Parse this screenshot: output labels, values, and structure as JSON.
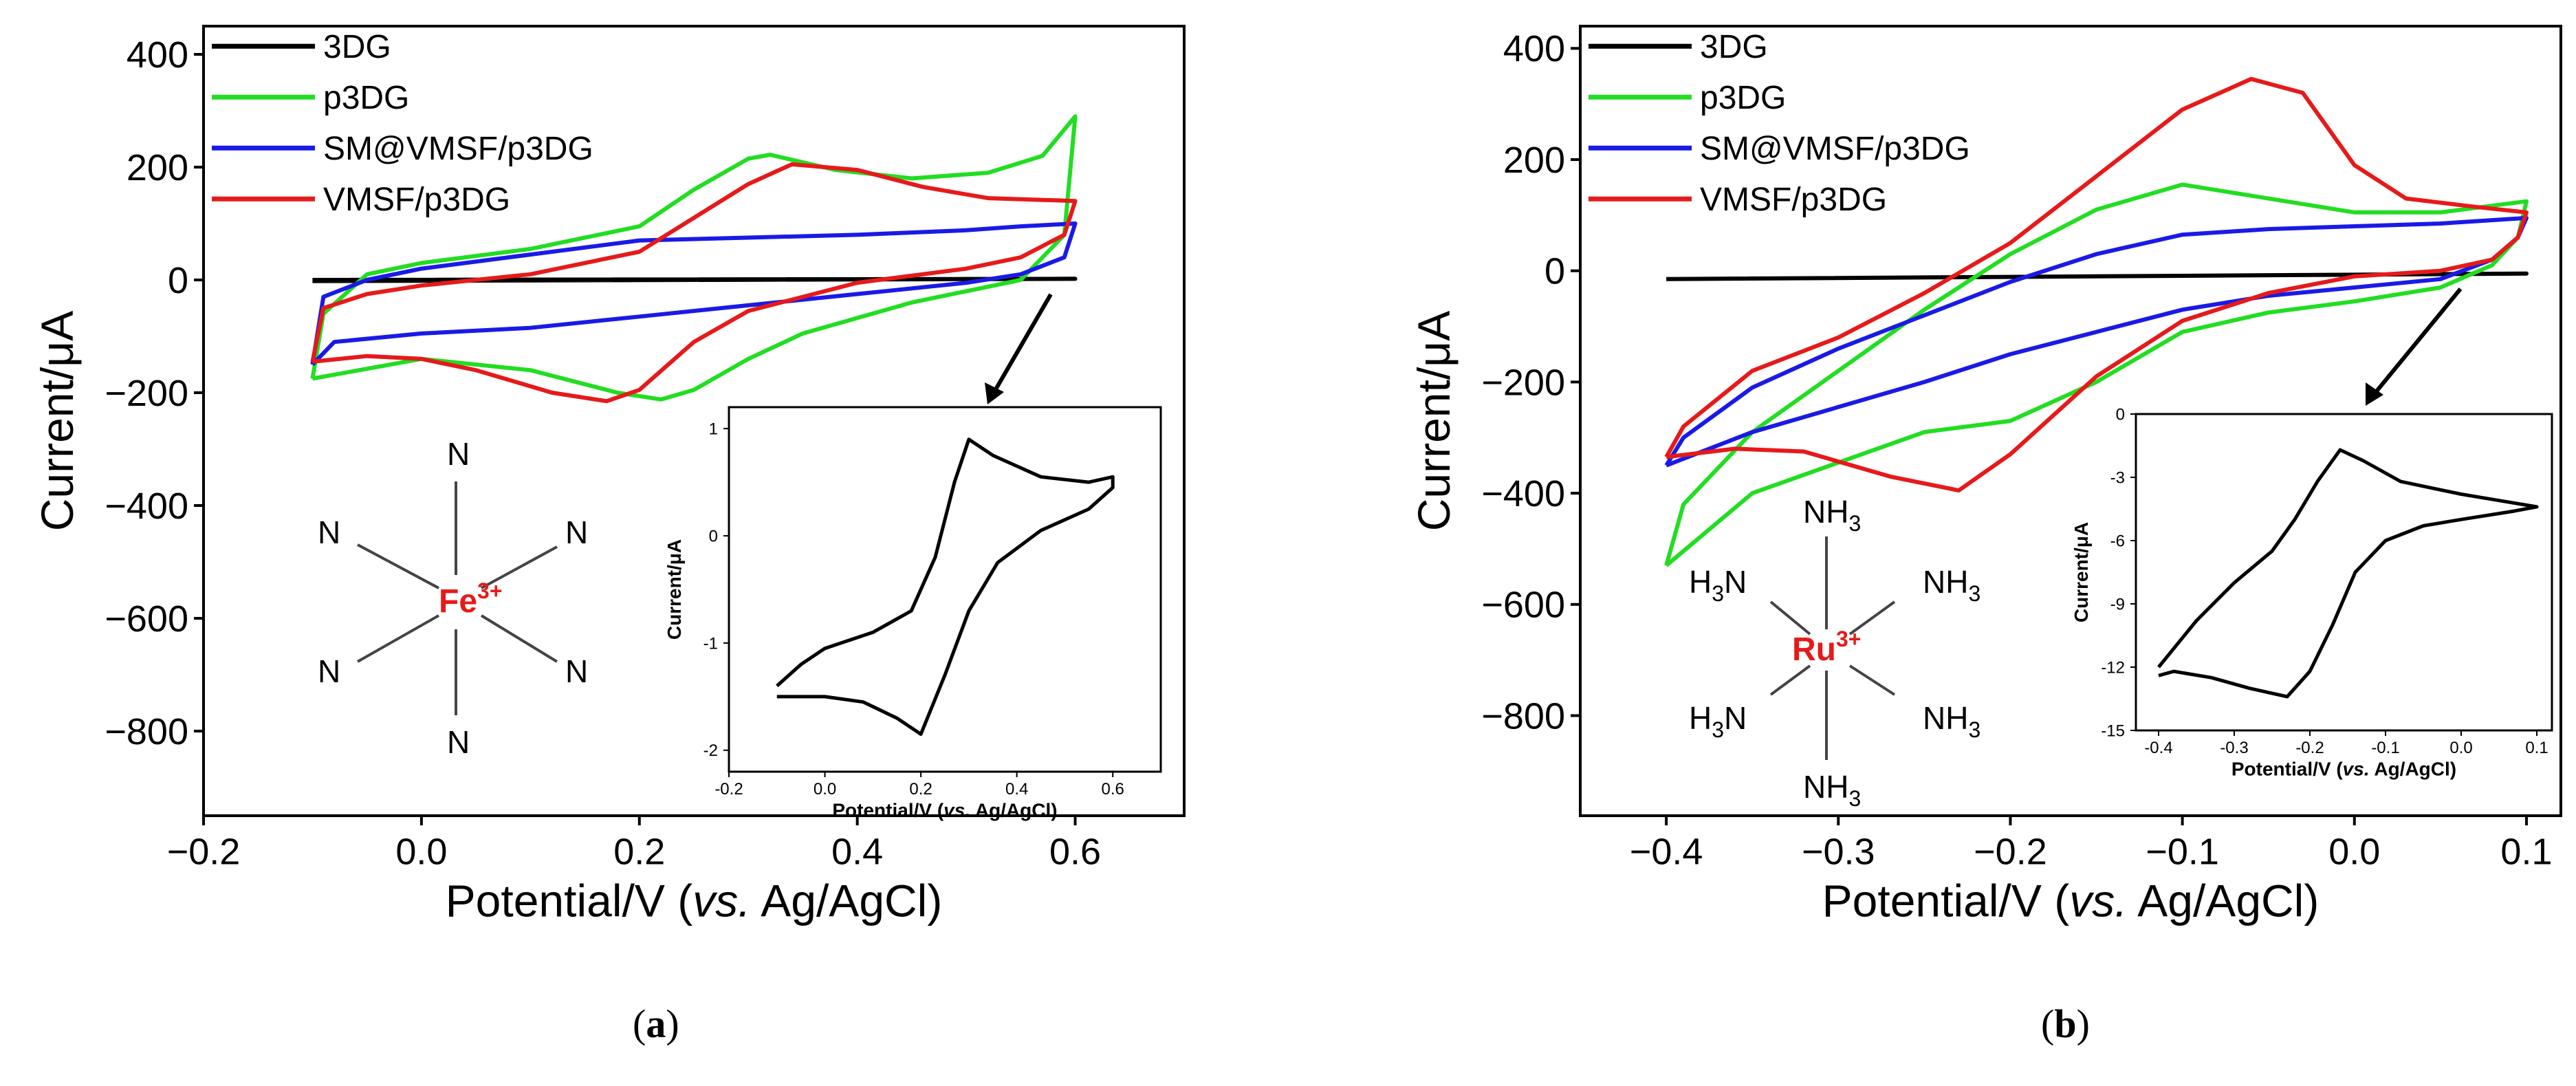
{
  "colors": {
    "3DG": "#000000",
    "p3DG": "#22dd22",
    "SM@VMSF/p3DG": "#1a1ae6",
    "VMSF/p3DG": "#e61a1a",
    "metal": "#e61a1a"
  },
  "panels": {
    "a": {
      "caption": "a",
      "metal_label": "Fe",
      "metal_charge": "3+",
      "ligand_label": "N"
    },
    "b": {
      "caption": "b",
      "metal_label": "Ru",
      "metal_charge": "3+",
      "ligand_label": "NH3",
      "ligand_left": "H3N",
      "ligand_right": "NH3"
    }
  },
  "chart_data": [
    {
      "id": "a-main",
      "type": "line",
      "xlabel": "Potential/V (vs. Ag/AgCl)",
      "xlabel_parts": [
        "Potential/V (",
        "vs.",
        ". Ag/AgCl)"
      ],
      "ylabel": "Current/μA",
      "xlim": [
        -0.2,
        0.7
      ],
      "ylim": [
        -950,
        450
      ],
      "xticks": [
        -0.2,
        0.0,
        0.2,
        0.4,
        0.6
      ],
      "xtick_labels": [
        "−0.2",
        "0.0",
        "0.2",
        "0.4",
        "0.6"
      ],
      "yticks": [
        400,
        200,
        0,
        -200,
        -400,
        -600,
        -800
      ],
      "ytick_labels": [
        "400",
        "200",
        "0",
        "−200",
        "−400",
        "−600",
        "−800"
      ],
      "legend": [
        "3DG",
        "p3DG",
        "SM@VMSF/p3DG",
        "VMSF/p3DG"
      ],
      "series": [
        {
          "name": "3DG",
          "points": [
            [
              -0.1,
              -2
            ],
            [
              0.6,
              2
            ],
            [
              -0.1,
              0
            ]
          ]
        },
        {
          "name": "p3DG",
          "points": [
            [
              -0.1,
              -175
            ],
            [
              -0.09,
              -60
            ],
            [
              -0.05,
              10
            ],
            [
              0.0,
              30
            ],
            [
              0.1,
              55
            ],
            [
              0.2,
              95
            ],
            [
              0.25,
              160
            ],
            [
              0.3,
              215
            ],
            [
              0.32,
              222
            ],
            [
              0.38,
              195
            ],
            [
              0.45,
              180
            ],
            [
              0.52,
              190
            ],
            [
              0.57,
              220
            ],
            [
              0.6,
              290
            ],
            [
              0.59,
              80
            ],
            [
              0.55,
              0
            ],
            [
              0.5,
              -20
            ],
            [
              0.45,
              -40
            ],
            [
              0.35,
              -95
            ],
            [
              0.3,
              -140
            ],
            [
              0.25,
              -195
            ],
            [
              0.22,
              -212
            ],
            [
              0.18,
              -200
            ],
            [
              0.1,
              -160
            ],
            [
              0.0,
              -140
            ],
            [
              -0.1,
              -175
            ]
          ]
        },
        {
          "name": "SM@VMSF/p3DG",
          "points": [
            [
              -0.1,
              -150
            ],
            [
              -0.09,
              -30
            ],
            [
              -0.05,
              0
            ],
            [
              0.0,
              20
            ],
            [
              0.1,
              45
            ],
            [
              0.2,
              70
            ],
            [
              0.3,
              75
            ],
            [
              0.4,
              80
            ],
            [
              0.5,
              88
            ],
            [
              0.55,
              95
            ],
            [
              0.6,
              100
            ],
            [
              0.59,
              40
            ],
            [
              0.55,
              10
            ],
            [
              0.5,
              -5
            ],
            [
              0.4,
              -25
            ],
            [
              0.3,
              -45
            ],
            [
              0.2,
              -65
            ],
            [
              0.1,
              -85
            ],
            [
              0.0,
              -95
            ],
            [
              -0.08,
              -110
            ],
            [
              -0.1,
              -150
            ]
          ]
        },
        {
          "name": "VMSF/p3DG",
          "points": [
            [
              -0.1,
              -145
            ],
            [
              -0.09,
              -50
            ],
            [
              -0.05,
              -25
            ],
            [
              0.0,
              -10
            ],
            [
              0.1,
              10
            ],
            [
              0.2,
              50
            ],
            [
              0.25,
              110
            ],
            [
              0.3,
              170
            ],
            [
              0.34,
              205
            ],
            [
              0.4,
              195
            ],
            [
              0.46,
              165
            ],
            [
              0.52,
              145
            ],
            [
              0.6,
              140
            ],
            [
              0.59,
              80
            ],
            [
              0.55,
              40
            ],
            [
              0.5,
              20
            ],
            [
              0.4,
              -5
            ],
            [
              0.3,
              -55
            ],
            [
              0.25,
              -110
            ],
            [
              0.2,
              -195
            ],
            [
              0.17,
              -215
            ],
            [
              0.12,
              -200
            ],
            [
              0.05,
              -160
            ],
            [
              0.0,
              -140
            ],
            [
              -0.05,
              -135
            ],
            [
              -0.1,
              -145
            ]
          ]
        }
      ]
    },
    {
      "id": "a-inset",
      "type": "line",
      "xlabel": "Potential/V (vs. Ag/AgCl)",
      "xlabel_parts": [
        "Potential/V (",
        "vs.",
        ". Ag/AgCl)"
      ],
      "ylabel": "Current/μA",
      "xlim": [
        -0.2,
        0.7
      ],
      "ylim": [
        -2.2,
        1.2
      ],
      "xticks": [
        -0.2,
        0.0,
        0.2,
        0.4,
        0.6
      ],
      "xtick_labels": [
        "-0.2",
        "0.0",
        "0.2",
        "0.4",
        "0.6"
      ],
      "yticks": [
        1,
        0,
        -1,
        -2
      ],
      "ytick_labels": [
        "1",
        "0",
        "-1",
        "-2"
      ],
      "series": [
        {
          "name": "3DG",
          "points": [
            [
              -0.1,
              -1.4
            ],
            [
              -0.05,
              -1.2
            ],
            [
              0.0,
              -1.05
            ],
            [
              0.1,
              -0.9
            ],
            [
              0.18,
              -0.7
            ],
            [
              0.23,
              -0.2
            ],
            [
              0.27,
              0.5
            ],
            [
              0.3,
              0.9
            ],
            [
              0.35,
              0.75
            ],
            [
              0.45,
              0.55
            ],
            [
              0.55,
              0.5
            ],
            [
              0.6,
              0.55
            ],
            [
              0.6,
              0.45
            ],
            [
              0.55,
              0.25
            ],
            [
              0.45,
              0.05
            ],
            [
              0.36,
              -0.25
            ],
            [
              0.3,
              -0.7
            ],
            [
              0.25,
              -1.3
            ],
            [
              0.2,
              -1.85
            ],
            [
              0.15,
              -1.7
            ],
            [
              0.08,
              -1.55
            ],
            [
              0.0,
              -1.5
            ],
            [
              -0.1,
              -1.5
            ]
          ]
        }
      ]
    },
    {
      "id": "b-main",
      "type": "line",
      "xlabel": "Potential/V (vs. Ag/AgCl)",
      "xlabel_parts": [
        "Potential/V (",
        "vs.",
        ". Ag/AgCl)"
      ],
      "ylabel": "Current/μA",
      "xlim": [
        -0.45,
        0.12
      ],
      "ylim": [
        -980,
        440
      ],
      "xticks": [
        -0.4,
        -0.3,
        -0.2,
        -0.1,
        0.0,
        0.1
      ],
      "xtick_labels": [
        "−0.4",
        "−0.3",
        "−0.2",
        "−0.1",
        "0.0",
        "0.1"
      ],
      "yticks": [
        400,
        200,
        0,
        -200,
        -400,
        -600,
        -800
      ],
      "ytick_labels": [
        "400",
        "200",
        "0",
        "−200",
        "−400",
        "−600",
        "−800"
      ],
      "legend": [
        "3DG",
        "p3DG",
        "SM@VMSF/p3DG",
        "VMSF/p3DG"
      ],
      "series": [
        {
          "name": "3DG",
          "points": [
            [
              -0.4,
              -15
            ],
            [
              0.1,
              -5
            ],
            [
              -0.4,
              -15
            ]
          ]
        },
        {
          "name": "p3DG",
          "points": [
            [
              -0.4,
              -530
            ],
            [
              -0.39,
              -420
            ],
            [
              -0.35,
              -290
            ],
            [
              -0.3,
              -180
            ],
            [
              -0.25,
              -70
            ],
            [
              -0.2,
              30
            ],
            [
              -0.15,
              110
            ],
            [
              -0.1,
              155
            ],
            [
              -0.05,
              130
            ],
            [
              0.0,
              105
            ],
            [
              0.05,
              105
            ],
            [
              0.1,
              125
            ],
            [
              0.095,
              60
            ],
            [
              0.08,
              10
            ],
            [
              0.05,
              -30
            ],
            [
              0.0,
              -55
            ],
            [
              -0.05,
              -75
            ],
            [
              -0.1,
              -110
            ],
            [
              -0.15,
              -200
            ],
            [
              -0.2,
              -270
            ],
            [
              -0.25,
              -290
            ],
            [
              -0.3,
              -345
            ],
            [
              -0.35,
              -400
            ],
            [
              -0.4,
              -530
            ]
          ]
        },
        {
          "name": "SM@VMSF/p3DG",
          "points": [
            [
              -0.4,
              -350
            ],
            [
              -0.39,
              -300
            ],
            [
              -0.35,
              -210
            ],
            [
              -0.3,
              -140
            ],
            [
              -0.25,
              -80
            ],
            [
              -0.2,
              -20
            ],
            [
              -0.15,
              30
            ],
            [
              -0.1,
              65
            ],
            [
              -0.05,
              75
            ],
            [
              0.0,
              80
            ],
            [
              0.05,
              85
            ],
            [
              0.1,
              95
            ],
            [
              0.095,
              60
            ],
            [
              0.08,
              20
            ],
            [
              0.05,
              -15
            ],
            [
              0.0,
              -30
            ],
            [
              -0.05,
              -45
            ],
            [
              -0.1,
              -70
            ],
            [
              -0.15,
              -110
            ],
            [
              -0.2,
              -150
            ],
            [
              -0.25,
              -200
            ],
            [
              -0.3,
              -245
            ],
            [
              -0.35,
              -290
            ],
            [
              -0.4,
              -350
            ]
          ]
        },
        {
          "name": "VMSF/p3DG",
          "points": [
            [
              -0.4,
              -335
            ],
            [
              -0.39,
              -280
            ],
            [
              -0.35,
              -180
            ],
            [
              -0.3,
              -120
            ],
            [
              -0.25,
              -40
            ],
            [
              -0.2,
              50
            ],
            [
              -0.15,
              170
            ],
            [
              -0.1,
              290
            ],
            [
              -0.06,
              345
            ],
            [
              -0.03,
              320
            ],
            [
              0.0,
              190
            ],
            [
              0.03,
              130
            ],
            [
              0.07,
              115
            ],
            [
              0.1,
              105
            ],
            [
              0.095,
              60
            ],
            [
              0.08,
              20
            ],
            [
              0.05,
              0
            ],
            [
              0.0,
              -10
            ],
            [
              -0.05,
              -40
            ],
            [
              -0.1,
              -90
            ],
            [
              -0.15,
              -190
            ],
            [
              -0.2,
              -330
            ],
            [
              -0.23,
              -395
            ],
            [
              -0.27,
              -370
            ],
            [
              -0.32,
              -325
            ],
            [
              -0.36,
              -320
            ],
            [
              -0.4,
              -335
            ]
          ]
        }
      ]
    },
    {
      "id": "b-inset",
      "type": "line",
      "xlabel": "Potential/V (vs. Ag/AgCl)",
      "xlabel_parts": [
        "Potential/V (",
        "vs.",
        ". Ag/AgCl)"
      ],
      "ylabel": "Current/μA",
      "xlim": [
        -0.43,
        0.12
      ],
      "ylim": [
        -15,
        0
      ],
      "xticks": [
        -0.4,
        -0.3,
        -0.2,
        -0.1,
        0.0,
        0.1
      ],
      "xtick_labels": [
        "-0.4",
        "-0.3",
        "-0.2",
        "-0.1",
        "0.0",
        "0.1"
      ],
      "yticks": [
        0,
        -3,
        -6,
        -9,
        -12,
        -15
      ],
      "ytick_labels": [
        "0",
        "-3",
        "-6",
        "-9",
        "-12",
        "-15"
      ],
      "series": [
        {
          "name": "3DG",
          "points": [
            [
              -0.4,
              -12
            ],
            [
              -0.35,
              -9.8
            ],
            [
              -0.3,
              -8
            ],
            [
              -0.25,
              -6.5
            ],
            [
              -0.22,
              -5
            ],
            [
              -0.19,
              -3.2
            ],
            [
              -0.16,
              -1.7
            ],
            [
              -0.13,
              -2.2
            ],
            [
              -0.08,
              -3.2
            ],
            [
              0.0,
              -3.8
            ],
            [
              0.05,
              -4.1
            ],
            [
              0.1,
              -4.4
            ],
            [
              0.07,
              -4.6
            ],
            [
              0.0,
              -5
            ],
            [
              -0.05,
              -5.3
            ],
            [
              -0.1,
              -6
            ],
            [
              -0.14,
              -7.5
            ],
            [
              -0.17,
              -10
            ],
            [
              -0.2,
              -12.2
            ],
            [
              -0.23,
              -13.4
            ],
            [
              -0.28,
              -13
            ],
            [
              -0.33,
              -12.5
            ],
            [
              -0.38,
              -12.2
            ],
            [
              -0.4,
              -12.4
            ]
          ]
        }
      ]
    }
  ]
}
